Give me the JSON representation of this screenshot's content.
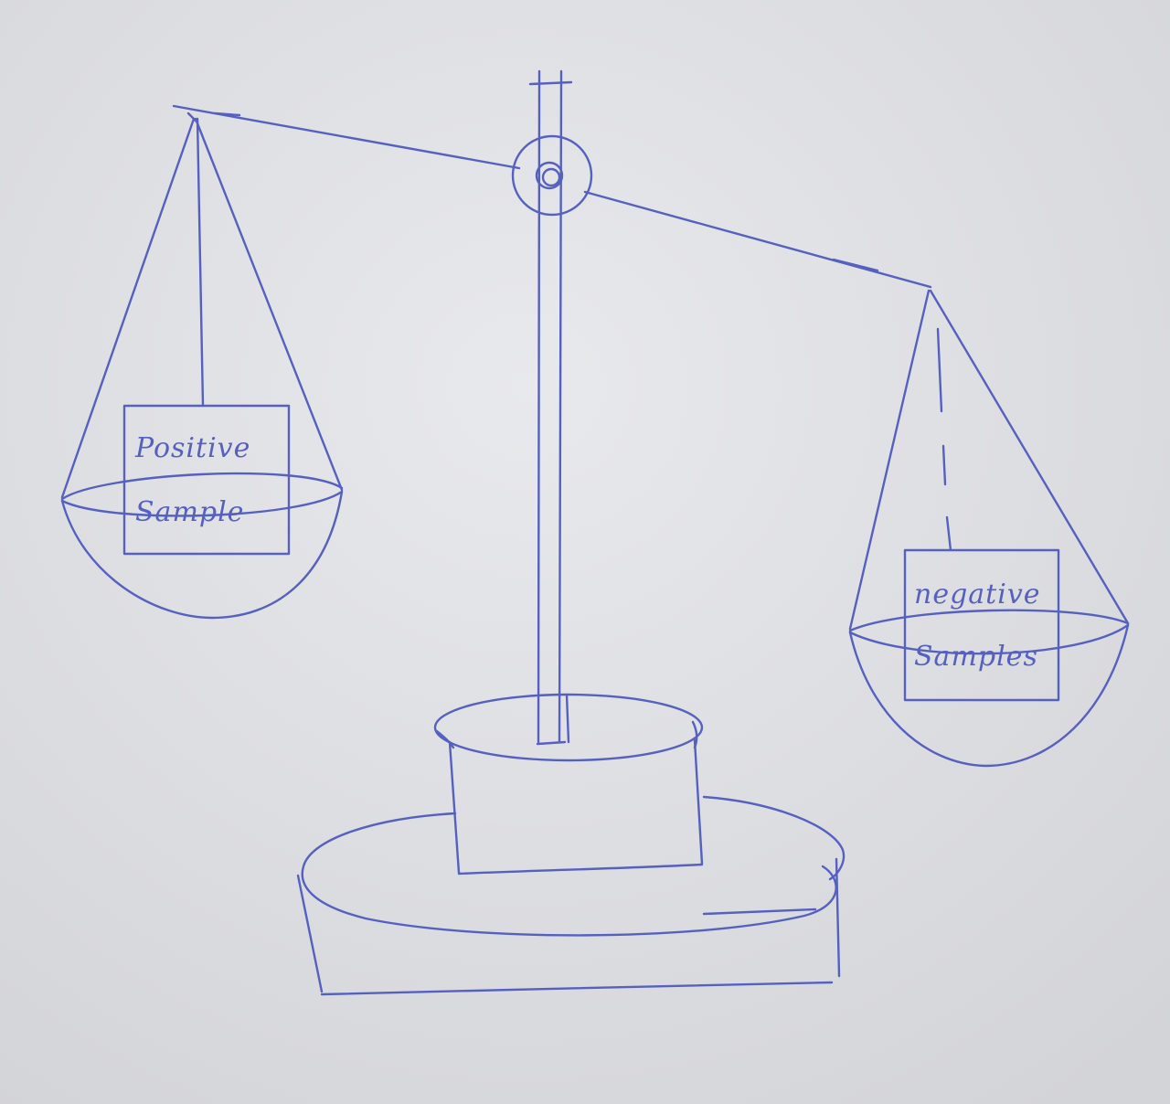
{
  "diagram": {
    "left_pan": {
      "label_line1": "Positive",
      "label_line2": "Sample"
    },
    "right_pan": {
      "label_line1": "negative",
      "label_line2": "Samples"
    }
  },
  "colors": {
    "paper": "#dcdde0",
    "paper_highlight": "#e6e7ea",
    "ink": "#5560c0"
  }
}
